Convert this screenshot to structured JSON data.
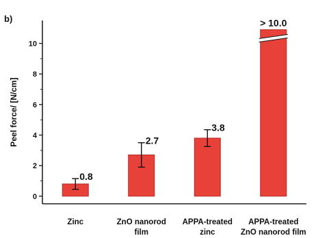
{
  "panel_label": "b)",
  "colors": {
    "bar_fill": "#e8413a",
    "bar_stroke": "#b02a24",
    "axis": "#222222"
  },
  "chart_data": {
    "type": "bar",
    "title": "",
    "xlabel": "",
    "ylabel": "Peel force/ [N/cm]",
    "ylim": [
      -0.5,
      11.5
    ],
    "yticks": [
      0,
      2,
      4,
      6,
      8,
      10
    ],
    "y_axis_break": true,
    "categories": [
      [
        "Zinc"
      ],
      [
        "ZnO nanorod",
        "film"
      ],
      [
        "APPA-treated",
        "zinc"
      ],
      [
        "APPA-treated",
        "ZnO nanorod film"
      ]
    ],
    "values": [
      0.8,
      2.7,
      3.8,
      10.9
    ],
    "errors": [
      0.35,
      0.8,
      0.55,
      null
    ],
    "data_labels": [
      "0.8",
      "2.7",
      "3.8",
      "> 10.0"
    ],
    "broken_bar_index": 3
  }
}
